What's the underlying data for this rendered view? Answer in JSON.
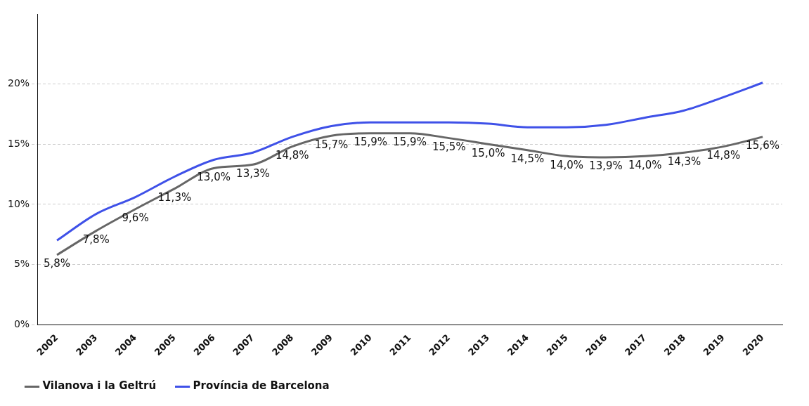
{
  "chart_data": {
    "type": "line",
    "categories": [
      "2002",
      "2003",
      "2004",
      "2005",
      "2006",
      "2007",
      "2008",
      "2009",
      "2010",
      "2011",
      "2012",
      "2013",
      "2014",
      "2015",
      "2016",
      "2017",
      "2018",
      "2019",
      "2020"
    ],
    "series": [
      {
        "name": "Vilanova i la Geltrú",
        "color": "#666666",
        "values": [
          5.8,
          7.8,
          9.6,
          11.3,
          13.0,
          13.3,
          14.8,
          15.7,
          15.9,
          15.9,
          15.5,
          15.0,
          14.5,
          14.0,
          13.9,
          14.0,
          14.3,
          14.8,
          15.6
        ],
        "value_labels": [
          "5,8%",
          "7,8%",
          "9,6%",
          "11,3%",
          "13,0%",
          "13,3%",
          "14,8%",
          "15,7%",
          "15,9%",
          "15,9%",
          "15,5%",
          "15,0%",
          "14,5%",
          "14,0%",
          "13,9%",
          "14,0%",
          "14,3%",
          "14,8%",
          "15,6%"
        ]
      },
      {
        "name": "Província de Barcelona",
        "color": "#3f51e8",
        "values": [
          7.0,
          9.2,
          10.6,
          12.3,
          13.7,
          14.3,
          15.6,
          16.5,
          16.8,
          16.8,
          16.8,
          16.7,
          16.4,
          16.4,
          16.6,
          17.2,
          17.8,
          18.9,
          20.1
        ]
      }
    ],
    "ylim": [
      0,
      25.8
    ],
    "yticks": [
      {
        "value": 0,
        "label": "0%"
      },
      {
        "value": 5,
        "label": "5%"
      },
      {
        "value": 10,
        "label": "10%"
      },
      {
        "value": 15,
        "label": "15%"
      },
      {
        "value": 20,
        "label": "20%"
      }
    ],
    "grid": "y",
    "legend": "bottom",
    "marker": "none",
    "line_style": "solid"
  }
}
